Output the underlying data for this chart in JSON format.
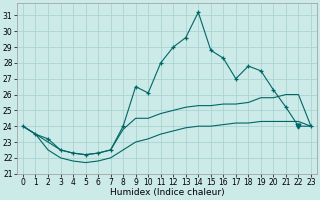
{
  "xlabel": "Humidex (Indice chaleur)",
  "bg_color": "#cceae8",
  "grid_color": "#aad4d2",
  "line_color": "#006666",
  "xlim": [
    -0.5,
    23.5
  ],
  "ylim": [
    21,
    31.8
  ],
  "yticks": [
    21,
    22,
    23,
    24,
    25,
    26,
    27,
    28,
    29,
    30,
    31
  ],
  "xticks": [
    0,
    1,
    2,
    3,
    4,
    5,
    6,
    7,
    8,
    9,
    10,
    11,
    12,
    13,
    14,
    15,
    16,
    17,
    18,
    19,
    20,
    21,
    22,
    23
  ],
  "line_main_x": [
    0,
    1,
    2,
    3,
    4,
    5,
    6,
    7,
    8,
    9,
    10,
    11,
    12,
    13,
    14,
    15,
    16,
    17,
    18,
    19,
    20,
    21,
    22,
    23
  ],
  "line_main_y": [
    24.0,
    23.5,
    23.2,
    22.5,
    22.3,
    22.2,
    22.3,
    22.5,
    24.0,
    26.5,
    26.1,
    28.0,
    29.0,
    29.6,
    31.2,
    28.8,
    28.3,
    27.0,
    27.8,
    27.5,
    26.3,
    25.2,
    24.0,
    24.0
  ],
  "line_upper_x": [
    0,
    1,
    2,
    3,
    4,
    5,
    6,
    7,
    8,
    9,
    10,
    11,
    12,
    13,
    14,
    15,
    16,
    17,
    18,
    19,
    20,
    21,
    22,
    23
  ],
  "line_upper_y": [
    24.0,
    23.5,
    23.0,
    22.5,
    22.3,
    22.2,
    22.3,
    22.5,
    23.8,
    24.5,
    24.5,
    24.8,
    25.0,
    25.2,
    25.3,
    25.3,
    25.4,
    25.4,
    25.5,
    25.8,
    25.8,
    26.0,
    26.0,
    24.0
  ],
  "line_lower_x": [
    0,
    1,
    2,
    3,
    4,
    5,
    6,
    7,
    8,
    9,
    10,
    11,
    12,
    13,
    14,
    15,
    16,
    17,
    18,
    19,
    20,
    21,
    22,
    23
  ],
  "line_lower_y": [
    24.0,
    23.5,
    22.5,
    22.0,
    21.8,
    21.7,
    21.8,
    22.0,
    22.5,
    23.0,
    23.2,
    23.5,
    23.7,
    23.9,
    24.0,
    24.0,
    24.1,
    24.2,
    24.2,
    24.3,
    24.3,
    24.3,
    24.3,
    24.0
  ],
  "tri_x": [
    22
  ],
  "tri_y": [
    24.0
  ]
}
